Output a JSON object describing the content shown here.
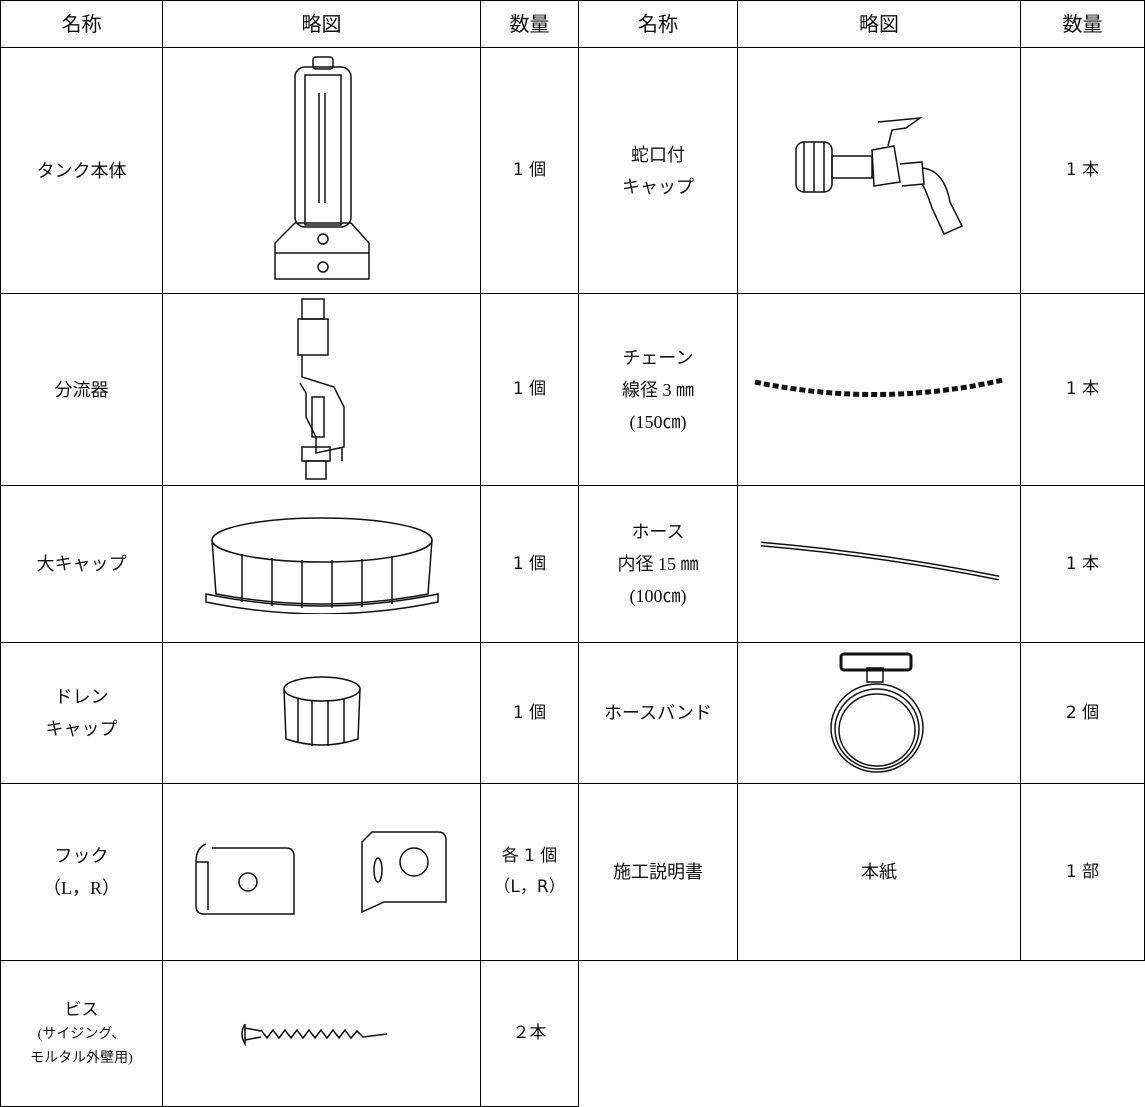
{
  "header": [
    "名称",
    "略図",
    "数量",
    "名称",
    "略図",
    "数量"
  ],
  "rows": [
    {
      "left": {
        "name": [
          "タンク本体"
        ],
        "qty": [
          "1 個"
        ]
      },
      "right": {
        "name": [
          "蛇口付",
          "キャップ"
        ],
        "qty": [
          "1 本"
        ]
      }
    },
    {
      "left": {
        "name": [
          "分流器"
        ],
        "qty": [
          "1 個"
        ]
      },
      "right": {
        "name": [
          "チェーン",
          "線径 3 ㎜",
          "(150㎝)"
        ],
        "qty": [
          "1 本"
        ]
      }
    },
    {
      "left": {
        "name": [
          "大キャップ"
        ],
        "qty": [
          "1 個"
        ]
      },
      "right": {
        "name": [
          "ホース",
          "内径 15 ㎜",
          "(100㎝)"
        ],
        "qty": [
          "1 本"
        ]
      }
    },
    {
      "left": {
        "name": [
          "ドレン",
          "キャップ"
        ],
        "qty": [
          "1 個"
        ]
      },
      "right": {
        "name": [
          "ホースバンド"
        ],
        "qty": [
          "2 個"
        ]
      }
    },
    {
      "left": {
        "name": [
          "フック",
          "（L，R）"
        ],
        "qty": [
          "各 1 個",
          "（L，R）"
        ]
      },
      "right": {
        "name": [
          "施工説明書"
        ],
        "sketch": "本紙",
        "qty": [
          "1 部"
        ]
      }
    },
    {
      "left": {
        "name": [
          "ビス",
          "(サイジング、",
          "モルタル外壁用)"
        ],
        "qty": [
          "２本"
        ]
      }
    }
  ]
}
